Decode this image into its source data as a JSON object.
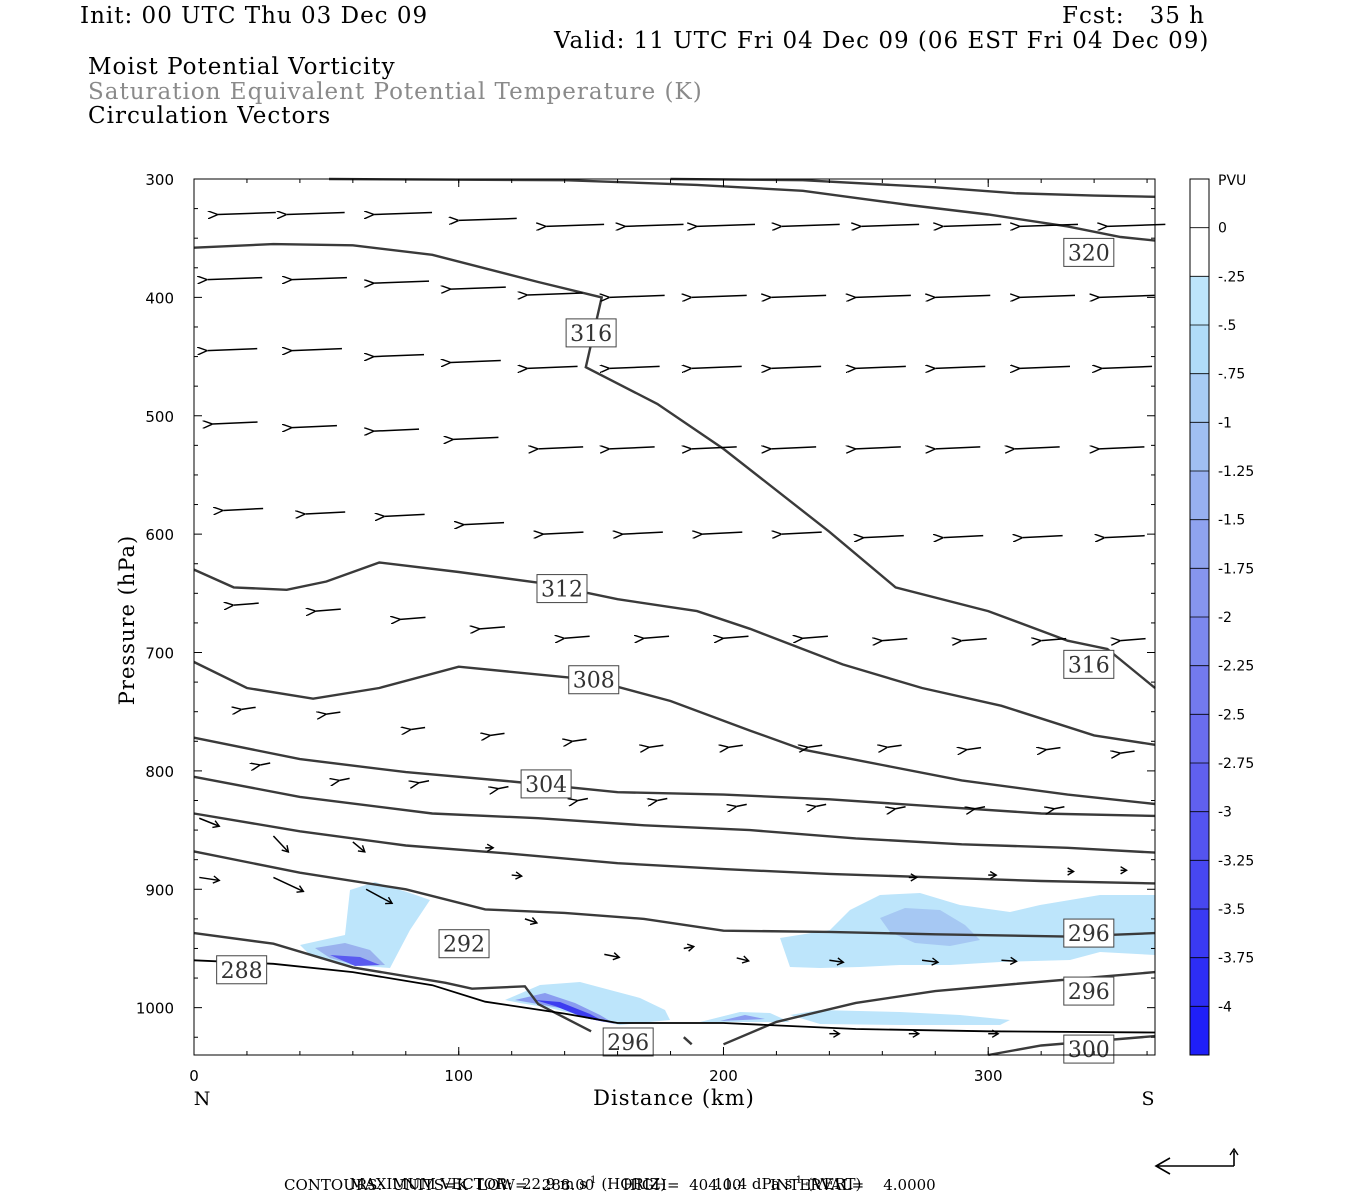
{
  "header": {
    "init": "Init: 00 UTC Thu 03 Dec 09",
    "fcst": "Fcst:   35 h",
    "valid": "Valid: 11 UTC Fri 04 Dec 09 (06 EST Fri 04 Dec 09)",
    "field1": "Moist Potential Vorticity",
    "field2": "Saturation Equivalent Potential Temperature (K)",
    "field3": "Circulation Vectors"
  },
  "footer": {
    "maxvec_label": "MAXIMUM VECTOR:",
    "horiz_value": "22.9 m s",
    "horiz_unit_tail": "(HORIZ)",
    "vert_value": "11.4 dPa s",
    "vert_unit_tail": "(VERT)",
    "exp": "-1",
    "contours": "CONTOURS:  UNITS=K  LOW=   288.00      HIGH=  404.00      INTERVAL=    4.0000"
  },
  "colors": {
    "contour": "#3a3a3a",
    "shade_light": "#bde5fb",
    "shade_mid": "#9ab2ee",
    "shade_dark": "#3c3cf0"
  },
  "chart_data": {
    "type": "cross-section",
    "xlabel": "Distance (km)",
    "ylabel": "Pressure (hPa)",
    "xlim": [
      0,
      363
    ],
    "ylim": [
      1040,
      300
    ],
    "x_ticks": [
      0,
      100,
      200,
      300
    ],
    "y_ticks": [
      300,
      400,
      500,
      600,
      700,
      800,
      900,
      1000
    ],
    "x_end_labels": {
      "left": "N",
      "right": "S"
    },
    "colorbar": {
      "unit": "PVU",
      "levels": [
        "0",
        "-.25",
        "-.5",
        "-.75",
        "-1",
        "-1.25",
        "-1.5",
        "-1.75",
        "-2",
        "-2.25",
        "-2.5",
        "-2.75",
        "-3",
        "-3.25",
        "-3.5",
        "-3.75",
        "-4"
      ],
      "colors": [
        "#ffffff",
        "#ffffff",
        "#bde5fb",
        "#b0dcf8",
        "#a8ccf4",
        "#a0bff2",
        "#97b0f0",
        "#8fa3ef",
        "#8695ee",
        "#7c88ee",
        "#737aee",
        "#6a6dee",
        "#6060ef",
        "#5454f0",
        "#4747f1",
        "#3a3af3",
        "#2d2df5",
        "#1f1ff8"
      ]
    },
    "contours": [
      {
        "label": "320",
        "label_at": [
          338,
          362
        ],
        "points": [
          [
            51,
            300
          ],
          [
            140,
            301
          ],
          [
            190,
            305
          ],
          [
            230,
            310
          ],
          [
            250,
            316
          ],
          [
            270,
            322
          ],
          [
            300,
            330
          ],
          [
            330,
            340
          ],
          [
            350,
            349
          ],
          [
            363,
            352
          ]
        ]
      },
      {
        "label": "320",
        "label_at": null,
        "points": [
          [
            180,
            300
          ],
          [
            230,
            301
          ],
          [
            280,
            307
          ],
          [
            310,
            312
          ],
          [
            340,
            314
          ],
          [
            363,
            315
          ]
        ]
      },
      {
        "label": "316",
        "label_at": [
          150,
          430
        ],
        "points": [
          [
            0,
            358
          ],
          [
            30,
            355
          ],
          [
            60,
            356
          ],
          [
            90,
            364
          ],
          [
            130,
            387
          ],
          [
            154,
            400
          ],
          [
            148,
            459
          ],
          [
            175,
            490
          ],
          [
            200,
            528
          ],
          [
            240,
            598
          ],
          [
            265,
            645
          ],
          [
            300,
            665
          ],
          [
            330,
            690
          ],
          [
            345,
            697
          ],
          [
            363,
            730
          ]
        ]
      },
      {
        "label": "316",
        "label_at": [
          338,
          710
        ],
        "points": null
      },
      {
        "label": "312",
        "label_at": [
          139,
          646
        ],
        "points": [
          [
            0,
            630
          ],
          [
            15,
            645
          ],
          [
            35,
            647
          ],
          [
            50,
            640
          ],
          [
            70,
            624
          ],
          [
            100,
            632
          ],
          [
            130,
            641
          ],
          [
            160,
            655
          ],
          [
            190,
            665
          ],
          [
            210,
            680
          ],
          [
            245,
            710
          ],
          [
            275,
            730
          ],
          [
            305,
            745
          ],
          [
            340,
            770
          ],
          [
            363,
            778
          ]
        ]
      },
      {
        "label": "308",
        "label_at": [
          151,
          723
        ],
        "points": [
          [
            0,
            708
          ],
          [
            20,
            730
          ],
          [
            45,
            739
          ],
          [
            70,
            730
          ],
          [
            100,
            712
          ],
          [
            150,
            723
          ],
          [
            180,
            741
          ],
          [
            210,
            766
          ],
          [
            230,
            782
          ],
          [
            260,
            795
          ],
          [
            290,
            808
          ],
          [
            330,
            820
          ],
          [
            363,
            828
          ]
        ]
      },
      {
        "label": "304",
        "label_at": [
          133,
          811
        ],
        "points": [
          [
            0,
            772
          ],
          [
            40,
            790
          ],
          [
            80,
            801
          ],
          [
            120,
            809
          ],
          [
            160,
            818
          ],
          [
            200,
            820
          ],
          [
            240,
            824
          ],
          [
            280,
            830
          ],
          [
            320,
            836
          ],
          [
            363,
            838
          ]
        ]
      },
      {
        "label": "300",
        "label_at": null,
        "points": [
          [
            0,
            805
          ],
          [
            40,
            822
          ],
          [
            90,
            836
          ],
          [
            130,
            840
          ],
          [
            170,
            846
          ],
          [
            210,
            850
          ],
          [
            250,
            857
          ],
          [
            290,
            862
          ],
          [
            330,
            865
          ],
          [
            363,
            869
          ]
        ]
      },
      {
        "label": "296",
        "label_at": null,
        "points": [
          [
            0,
            836
          ],
          [
            40,
            851
          ],
          [
            80,
            863
          ],
          [
            120,
            870
          ],
          [
            160,
            878
          ],
          [
            200,
            883
          ],
          [
            240,
            887
          ],
          [
            280,
            890
          ],
          [
            320,
            893
          ],
          [
            363,
            895
          ]
        ]
      },
      {
        "label": "292",
        "label_at": [
          102,
          946
        ],
        "points": [
          [
            0,
            868
          ],
          [
            40,
            886
          ],
          [
            80,
            900
          ],
          [
            110,
            917
          ],
          [
            140,
            920
          ],
          [
            170,
            925
          ],
          [
            200,
            935
          ],
          [
            240,
            936
          ],
          [
            280,
            938
          ],
          [
            330,
            940
          ],
          [
            363,
            937
          ]
        ]
      },
      {
        "label": "288",
        "label_at": [
          18,
          968
        ],
        "points": [
          [
            0,
            937
          ],
          [
            30,
            946
          ],
          [
            60,
            966
          ],
          [
            95,
            979
          ],
          [
            105,
            984
          ],
          [
            125,
            982
          ],
          [
            130,
            997
          ],
          [
            150,
            1020
          ]
        ]
      },
      {
        "label": "296",
        "label_at": [
          164,
          1029
        ],
        "points": [
          [
            185,
            1025
          ],
          [
            188,
            1031
          ]
        ]
      },
      {
        "label": "296",
        "label_at": [
          338,
          986
        ],
        "points": [
          [
            200,
            1031
          ],
          [
            220,
            1012
          ],
          [
            250,
            996
          ],
          [
            280,
            986
          ],
          [
            310,
            980
          ],
          [
            363,
            970
          ]
        ]
      },
      {
        "label": "296",
        "label_at": [
          338,
          937
        ],
        "points": null
      },
      {
        "label": "300",
        "label_at": [
          338,
          1035
        ],
        "points": [
          [
            300,
            1040
          ],
          [
            320,
            1032
          ],
          [
            363,
            1024
          ]
        ]
      }
    ],
    "ground": [
      [
        0,
        960
      ],
      [
        30,
        963
      ],
      [
        60,
        970
      ],
      [
        90,
        981
      ],
      [
        110,
        995
      ],
      [
        140,
        1005
      ],
      [
        160,
        1013
      ],
      [
        200,
        1013
      ],
      [
        250,
        1018
      ],
      [
        300,
        1020
      ],
      [
        363,
        1021
      ]
    ]
  }
}
